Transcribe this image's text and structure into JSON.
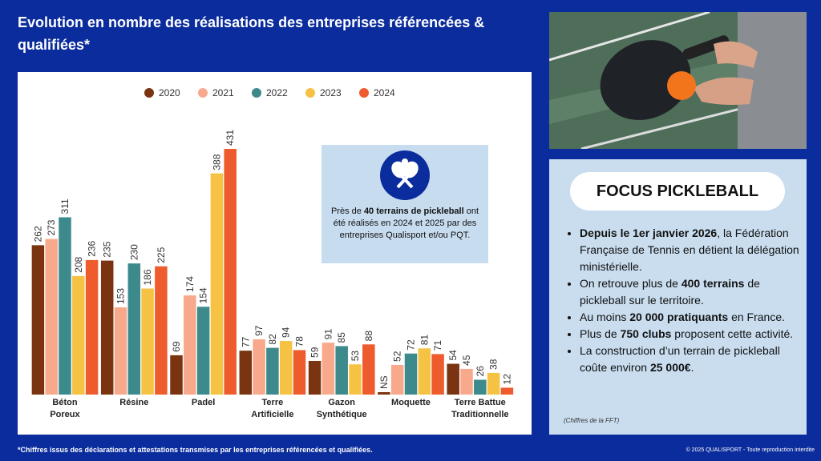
{
  "header": {
    "title": "Evolution en nombre des réalisations des entreprises référencées & qualifiées*"
  },
  "chart_data": {
    "type": "bar",
    "categories": [
      "Béton\nPoreux",
      "Résine",
      "Padel",
      "Terre\nArtificielle",
      "Gazon\nSynthétique",
      "Moquette",
      "Terre Battue\nTraditionnelle"
    ],
    "series": [
      {
        "name": "2020",
        "color": "#7a3411",
        "values": [
          262,
          235,
          69,
          77,
          59,
          null,
          54
        ],
        "value_labels": [
          "262",
          "235",
          "69",
          "77",
          "59",
          "NS",
          "54"
        ]
      },
      {
        "name": "2021",
        "color": "#f8a98b",
        "values": [
          273,
          153,
          174,
          97,
          91,
          52,
          45
        ]
      },
      {
        "name": "2022",
        "color": "#3d8a8d",
        "values": [
          311,
          230,
          154,
          82,
          85,
          72,
          26
        ]
      },
      {
        "name": "2023",
        "color": "#f5c244",
        "values": [
          208,
          186,
          388,
          94,
          53,
          81,
          38
        ]
      },
      {
        "name": "2024",
        "color": "#ee5b2d",
        "values": [
          236,
          225,
          431,
          78,
          88,
          71,
          12
        ]
      }
    ],
    "legend": "top"
  },
  "info_box": {
    "parts": [
      {
        "t": "Près de "
      },
      {
        "t": "40 terrains de pickleball",
        "bold": true
      },
      {
        "t": " ont été réalisés en 2024 et 2025 par des entreprises Qualisport et/ou PQT."
      }
    ]
  },
  "focus": {
    "title": "FOCUS PICKLEBALL",
    "items": [
      [
        {
          "t": "Depuis le 1er janvier 2026",
          "bold": true
        },
        {
          "t": ", la Fédération Française de Tennis en détient la délégation ministérielle."
        }
      ],
      [
        {
          "t": "On retrouve plus de "
        },
        {
          "t": "400 terrains",
          "bold": true
        },
        {
          "t": " de pickleball sur le territoire."
        }
      ],
      [
        {
          "t": "Au moins "
        },
        {
          "t": "20 000 pratiquants",
          "bold": true
        },
        {
          "t": " en France."
        }
      ],
      [
        {
          "t": "Plus de "
        },
        {
          "t": "750 clubs",
          "bold": true
        },
        {
          "t": " proposent cette activité."
        }
      ],
      [
        {
          "t": "La construction d’un terrain de pickleball coûte environ "
        },
        {
          "t": "25 000€",
          "bold": true
        },
        {
          "t": "."
        }
      ]
    ],
    "note": "(Chiffres de la FFT)"
  },
  "footer": {
    "note": "*Chiffres issus des déclarations et attestations transmises par les entreprises référencées et qualifiées.",
    "copyright": "© 2025 QUALISPORT - Toute reproduction interdite"
  }
}
